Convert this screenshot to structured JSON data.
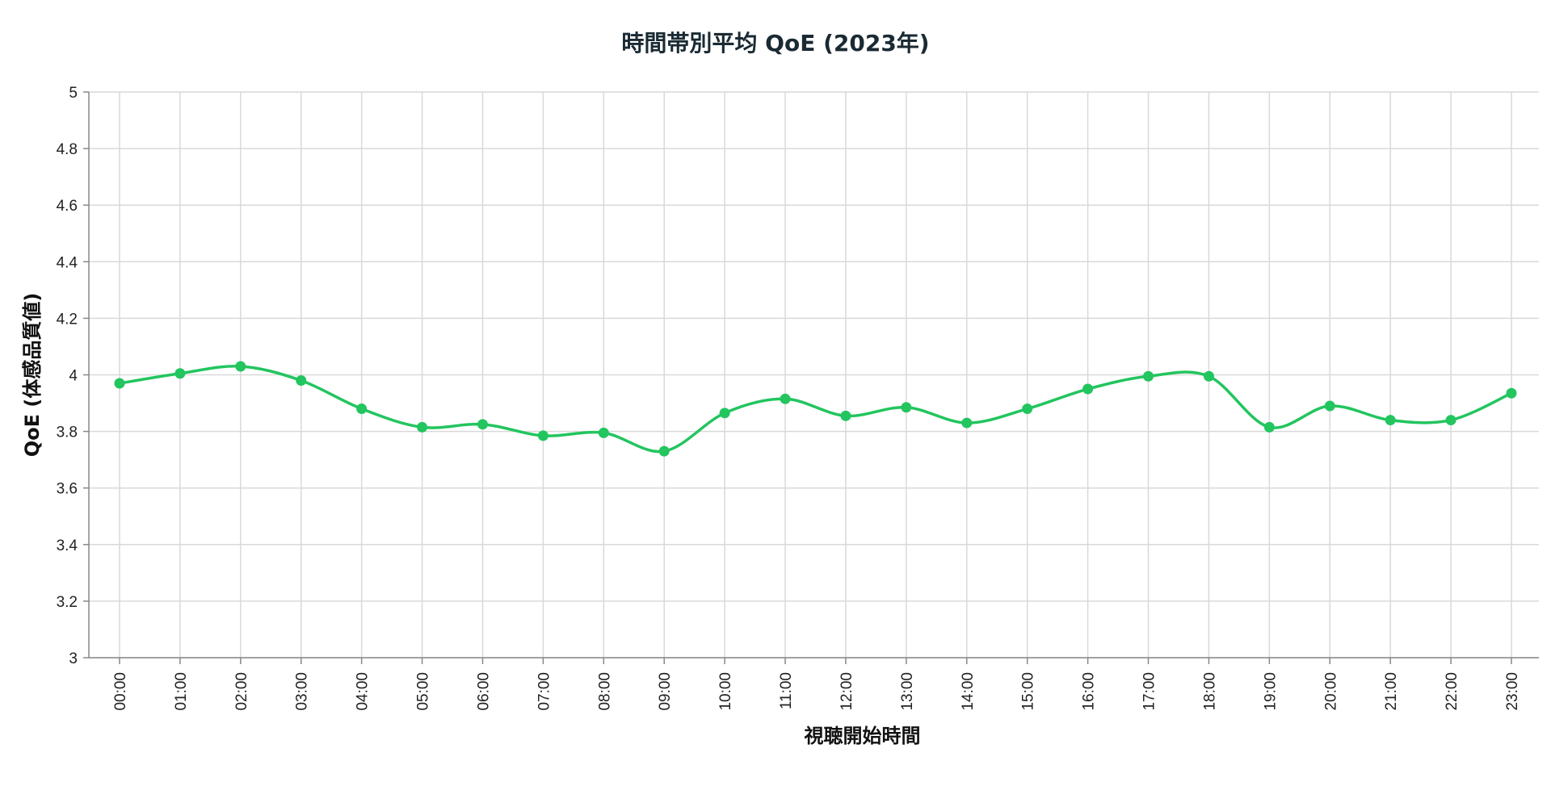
{
  "chart_data": {
    "type": "line",
    "title": "時間帯別平均 QoE (2023年)",
    "xlabel": "視聴開始時間",
    "ylabel": "QoE (体感品質値)",
    "ylim": [
      3,
      5
    ],
    "yticks": [
      "3",
      "3.2",
      "3.4",
      "3.6",
      "3.8",
      "4",
      "4.2",
      "4.4",
      "4.6",
      "4.8",
      "5"
    ],
    "categories": [
      "00:00",
      "01:00",
      "02:00",
      "03:00",
      "04:00",
      "05:00",
      "06:00",
      "07:00",
      "08:00",
      "09:00",
      "10:00",
      "11:00",
      "12:00",
      "13:00",
      "14:00",
      "15:00",
      "16:00",
      "17:00",
      "18:00",
      "19:00",
      "20:00",
      "21:00",
      "22:00",
      "23:00"
    ],
    "values": [
      3.97,
      4.005,
      4.03,
      3.98,
      3.88,
      3.815,
      3.825,
      3.785,
      3.795,
      3.73,
      3.865,
      3.915,
      3.855,
      3.885,
      3.83,
      3.88,
      3.95,
      3.995,
      3.995,
      3.815,
      3.89,
      3.84,
      3.84,
      3.935
    ],
    "grid": true,
    "line_color": "#22c55e"
  }
}
